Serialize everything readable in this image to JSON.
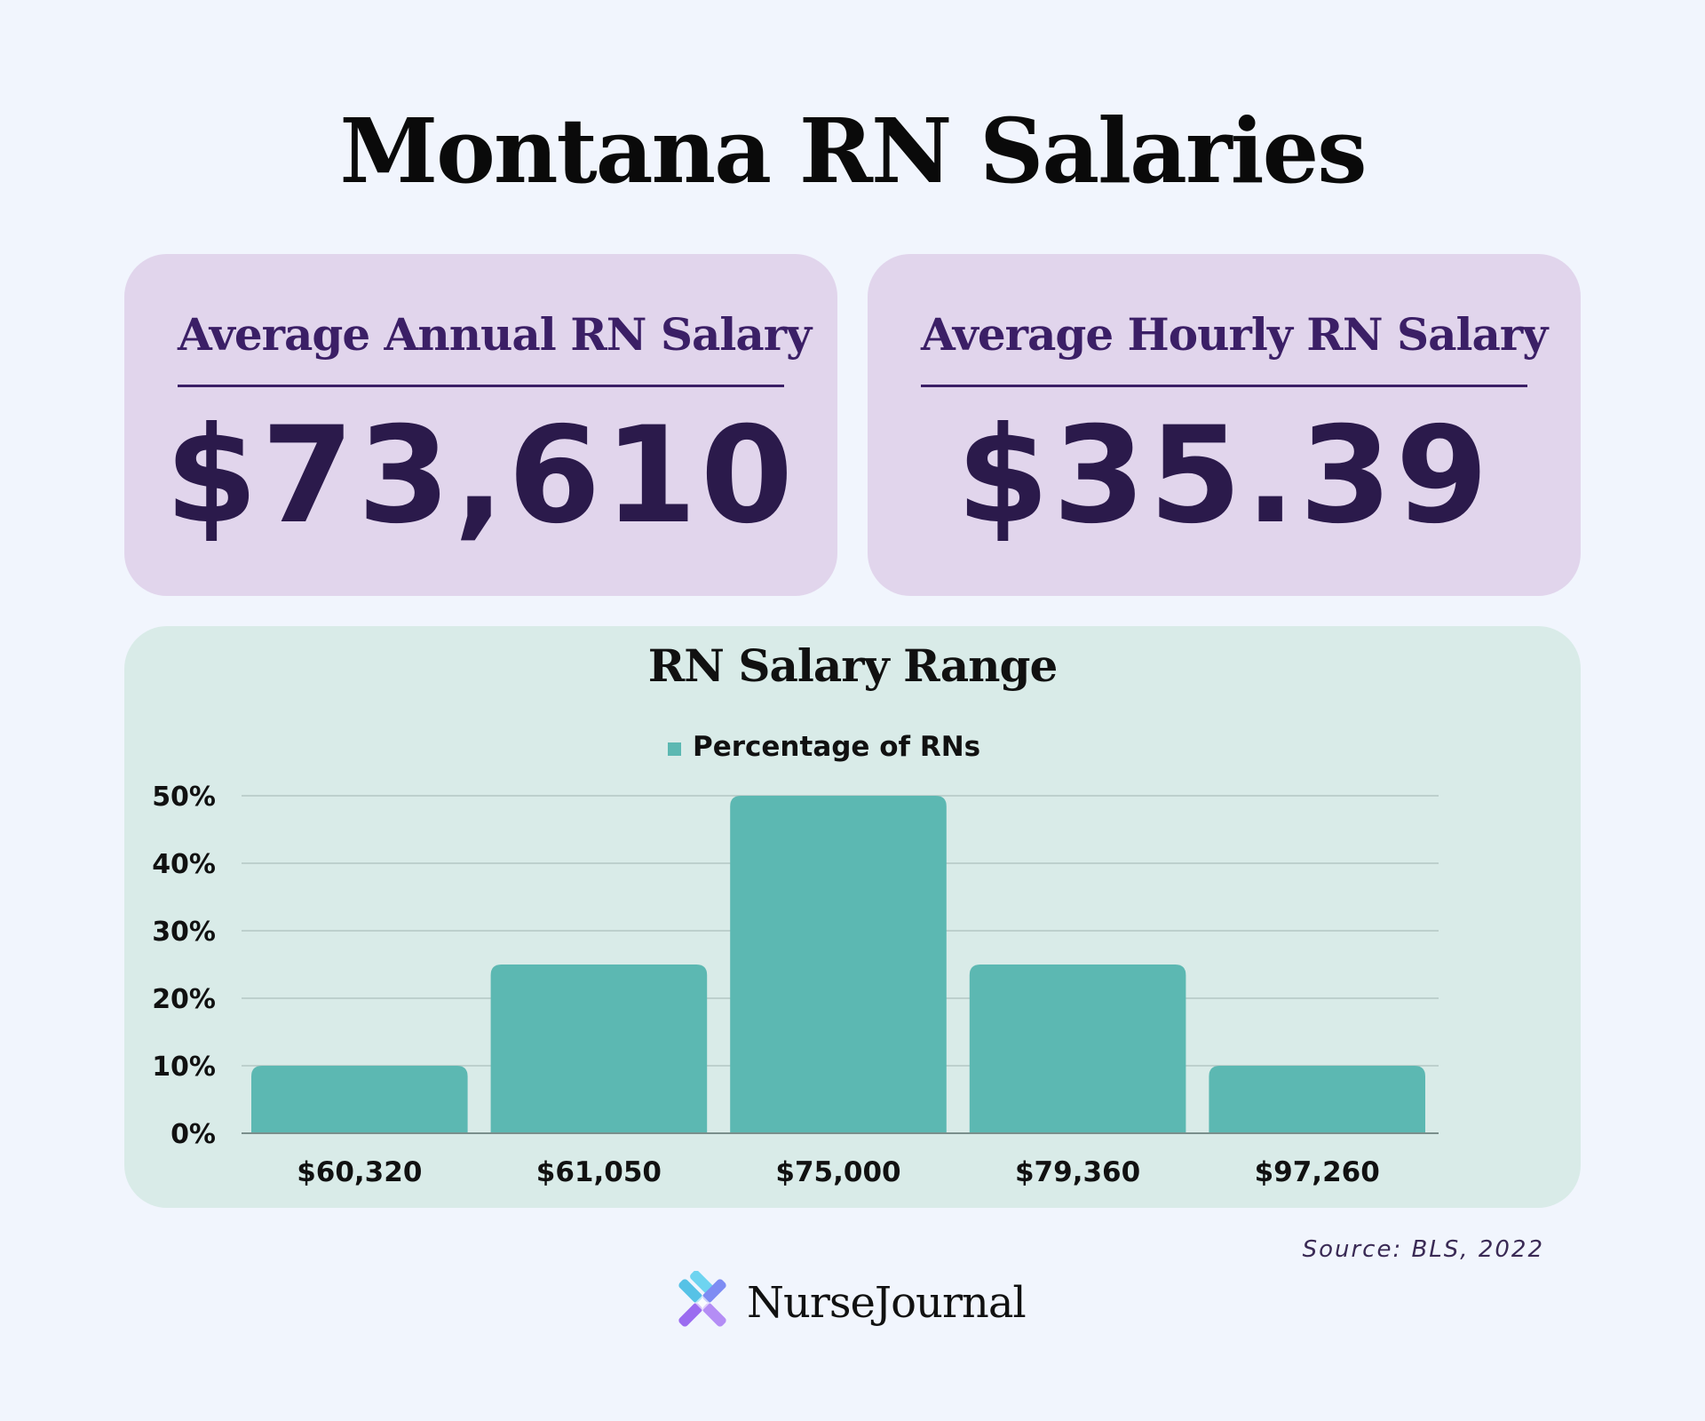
{
  "title": "Montana RN Salaries",
  "cards": {
    "annual": {
      "label": "Average Annual RN Salary",
      "value": "$73,610"
    },
    "hourly": {
      "label": "Average Hourly RN Salary",
      "value": "$35.39"
    }
  },
  "chart_data": {
    "type": "bar",
    "title": "RN Salary Range",
    "xlabel": "",
    "ylabel": "",
    "categories": [
      "$60,320",
      "$61,050",
      "$75,000",
      "$79,360",
      "$97,260"
    ],
    "series": [
      {
        "name": "Percentage of RNs",
        "values": [
          10,
          25,
          50,
          25,
          10
        ]
      }
    ],
    "ylim": [
      0,
      50
    ],
    "yticks": [
      "0%",
      "10%",
      "20%",
      "30%",
      "40%",
      "50%"
    ],
    "grid": true,
    "legend": "top-center"
  },
  "colors": {
    "bar": "#5cb8b2",
    "card_bg": "#e1d5ec",
    "chart_bg": "#d9ebe8",
    "page_bg": "#f1f5fd"
  },
  "source": "Source: BLS, 2022",
  "brand": {
    "name": "NurseJournal",
    "logo_icon": "nursejournal-logo-icon"
  }
}
